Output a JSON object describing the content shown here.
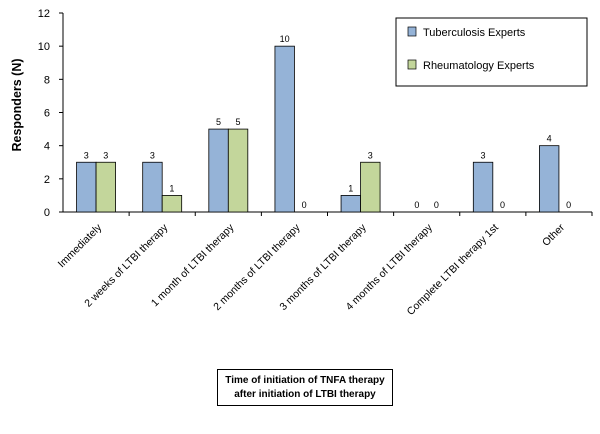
{
  "chart_data": {
    "type": "bar",
    "ylabel": "Responders (N)",
    "xlabel_lines": [
      "Time of initiation of TNFA therapy",
      "after initiation of LTBI therapy"
    ],
    "ylim": [
      0,
      12
    ],
    "yticks": [
      0,
      2,
      4,
      6,
      8,
      10,
      12
    ],
    "grid": false,
    "legend_position": "top-right",
    "categories": [
      "Immediately",
      "2 weeks of LTBI therapy",
      "1 month of LTBI therapy",
      "2 months of LTBI therapy",
      "3 months of LTBI therapy",
      "4 months of LTBI therapy",
      "Complete LTBI therapy 1st",
      "Other"
    ],
    "series": [
      {
        "name": "Tuberculosis Experts",
        "color": "#95B3D7",
        "values": [
          3,
          3,
          5,
          10,
          1,
          0,
          3,
          4
        ]
      },
      {
        "name": "Rheumatology Experts",
        "color": "#C3D69B",
        "values": [
          3,
          1,
          5,
          0,
          3,
          0,
          0,
          0
        ]
      }
    ]
  }
}
